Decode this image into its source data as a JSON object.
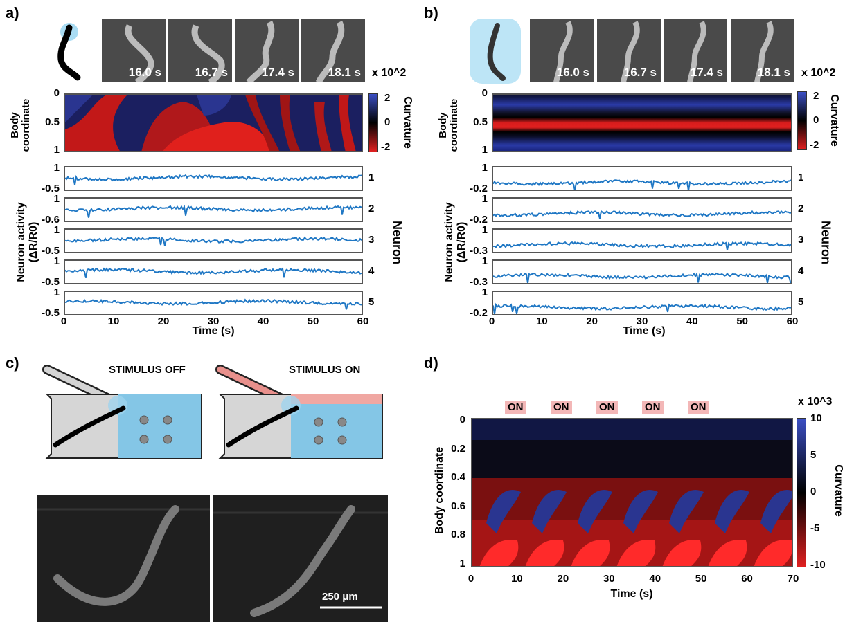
{
  "panels": {
    "a": {
      "label": "a)",
      "timestamps": [
        "16.0 s",
        "16.7 s",
        "17.4 s",
        "18.1 s"
      ],
      "scale_note": "x 10^2",
      "heatmap": {
        "ylabel": "Body coordinate",
        "yticks": [
          "0",
          "0.5",
          "1"
        ],
        "cbar_label": "Curvature",
        "cbar_ticks": [
          "2",
          "0",
          "-2"
        ]
      },
      "traces": {
        "ylabel_line1": "Neuron activity",
        "ylabel_line2": "(ΔR/R0)",
        "right_label": "Neuron",
        "neurons": [
          {
            "id": "1",
            "top": "1",
            "bottom": "-0.5"
          },
          {
            "id": "2",
            "top": "1",
            "bottom": "-0.6"
          },
          {
            "id": "3",
            "top": "1",
            "bottom": "-0.5"
          },
          {
            "id": "4",
            "top": "1",
            "bottom": "-0.5"
          },
          {
            "id": "5",
            "top": "1",
            "bottom": "-0.5"
          }
        ],
        "xticks": [
          "0",
          "10",
          "20",
          "30",
          "40",
          "50",
          "60"
        ],
        "xlabel": "Time (s)"
      }
    },
    "b": {
      "label": "b)",
      "timestamps": [
        "16.0 s",
        "16.7 s",
        "17.4 s",
        "18.1 s"
      ],
      "scale_note": "x 10^2",
      "heatmap": {
        "ylabel": "Body coordinate",
        "yticks": [
          "0",
          "0.5",
          "1"
        ],
        "cbar_label": "Curvature",
        "cbar_ticks": [
          "2",
          "0",
          "-2"
        ]
      },
      "traces": {
        "ylabel_line1": "Neuron activity",
        "ylabel_line2": "(ΔR/R0)",
        "right_label": "Neuron",
        "neurons": [
          {
            "id": "1",
            "top": "1",
            "bottom": "-0.2"
          },
          {
            "id": "2",
            "top": "1",
            "bottom": "-0.2"
          },
          {
            "id": "3",
            "top": "1",
            "bottom": "-0.3"
          },
          {
            "id": "4",
            "top": "1",
            "bottom": "-0.3"
          },
          {
            "id": "5",
            "top": "1",
            "bottom": "-0.2"
          }
        ],
        "xticks": [
          "0",
          "10",
          "20",
          "30",
          "40",
          "50",
          "60"
        ],
        "xlabel": "Time (s)"
      }
    },
    "c": {
      "label": "c)",
      "stim_off": "STIMULUS OFF",
      "stim_on": "STIMULUS ON",
      "scalebar": "250 μm"
    },
    "d": {
      "label": "d)",
      "on_labels": [
        "ON",
        "ON",
        "ON",
        "ON",
        "ON"
      ],
      "scale_note": "x 10^3",
      "ylabel": "Body coordinate",
      "yticks": [
        "0",
        "0.2",
        "0.4",
        "0.6",
        "0.8",
        "1"
      ],
      "xticks": [
        "0",
        "10",
        "20",
        "30",
        "40",
        "50",
        "60",
        "70"
      ],
      "xlabel": "Time (s)",
      "cbar_label": "Curvature",
      "cbar_ticks": [
        "10",
        "5",
        "0",
        "-5",
        "-10"
      ]
    }
  },
  "colors": {
    "trace": "#1f77c4",
    "positive": "#2b3a9a",
    "negative": "#e02020",
    "stimulus": "#f08080",
    "chamber": "#7fc4e8"
  }
}
